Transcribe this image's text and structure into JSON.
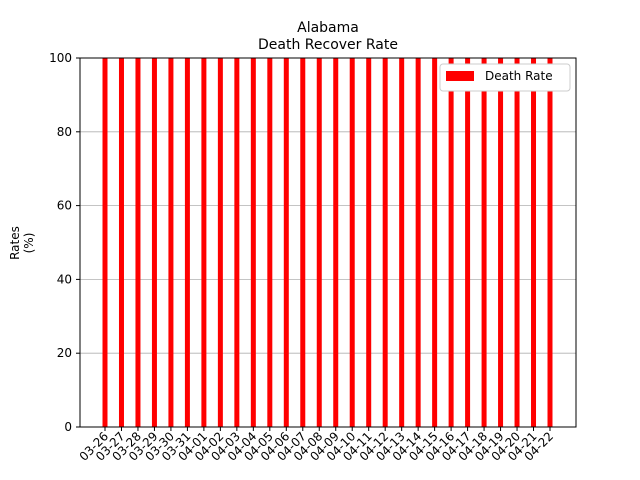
{
  "chart_data": {
    "type": "bar",
    "title": "Alabama",
    "subtitle": "Death Recover Rate",
    "ylabel_line1": "Rates",
    "ylabel_line2": "(%)",
    "xlabel": "",
    "ylim": [
      0,
      100
    ],
    "yticks": [
      0,
      20,
      40,
      60,
      80,
      100
    ],
    "grid": "y",
    "legend_position": "top-right",
    "categories": [
      "03-26",
      "03-27",
      "03-28",
      "03-29",
      "03-30",
      "03-31",
      "04-01",
      "04-02",
      "04-03",
      "04-04",
      "04-05",
      "04-06",
      "04-07",
      "04-08",
      "04-09",
      "04-10",
      "04-11",
      "04-12",
      "04-13",
      "04-14",
      "04-15",
      "04-16",
      "04-17",
      "04-18",
      "04-19",
      "04-20",
      "04-21",
      "04-22"
    ],
    "series": [
      {
        "name": "Death Rate",
        "color": "#ff0000",
        "values": [
          100,
          100,
          100,
          100,
          100,
          100,
          100,
          100,
          100,
          100,
          100,
          100,
          100,
          100,
          100,
          100,
          100,
          100,
          100,
          100,
          100,
          100,
          100,
          100,
          100,
          100,
          100,
          100
        ]
      }
    ]
  }
}
